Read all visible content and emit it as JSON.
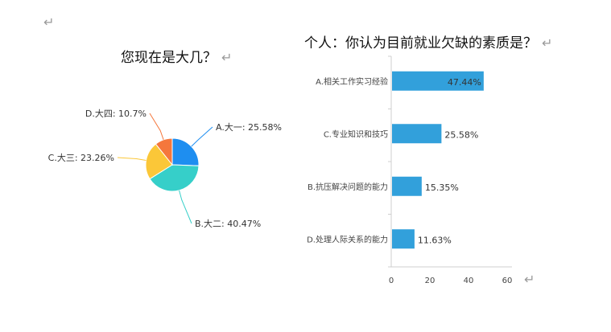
{
  "pilcrow": "↵",
  "chart_data": [
    {
      "type": "pie",
      "title": "您现在是大几？",
      "slices": [
        {
          "label": "A.大一",
          "value": 25.58,
          "text": "A.大一: 25.58%",
          "color": "#1e8ef0"
        },
        {
          "label": "B.大二",
          "value": 40.47,
          "text": "B.大二: 40.47%",
          "color": "#36cfc9"
        },
        {
          "label": "C.大三",
          "value": 23.26,
          "text": "C.大三: 23.26%",
          "color": "#fbc738"
        },
        {
          "label": "D.大四",
          "value": 10.7,
          "text": "D.大四: 10.7%",
          "color": "#f5773c"
        }
      ]
    },
    {
      "type": "bar",
      "orientation": "horizontal",
      "title": "个人：你认为目前就业欠缺的素质是？",
      "categories": [
        "A.相关工作实习经验",
        "C.专业知识和技巧",
        "B.抗压解决问题的能力",
        "D.处理人际关系的能力"
      ],
      "values": [
        47.44,
        25.58,
        15.35,
        11.63
      ],
      "value_labels": [
        "47.44%",
        "25.58%",
        "15.35%",
        "11.63%"
      ],
      "xlim": [
        0,
        60
      ],
      "xticks": [
        "0",
        "20",
        "40",
        "60"
      ],
      "bar_color": "#32a0db",
      "grid": false
    }
  ]
}
